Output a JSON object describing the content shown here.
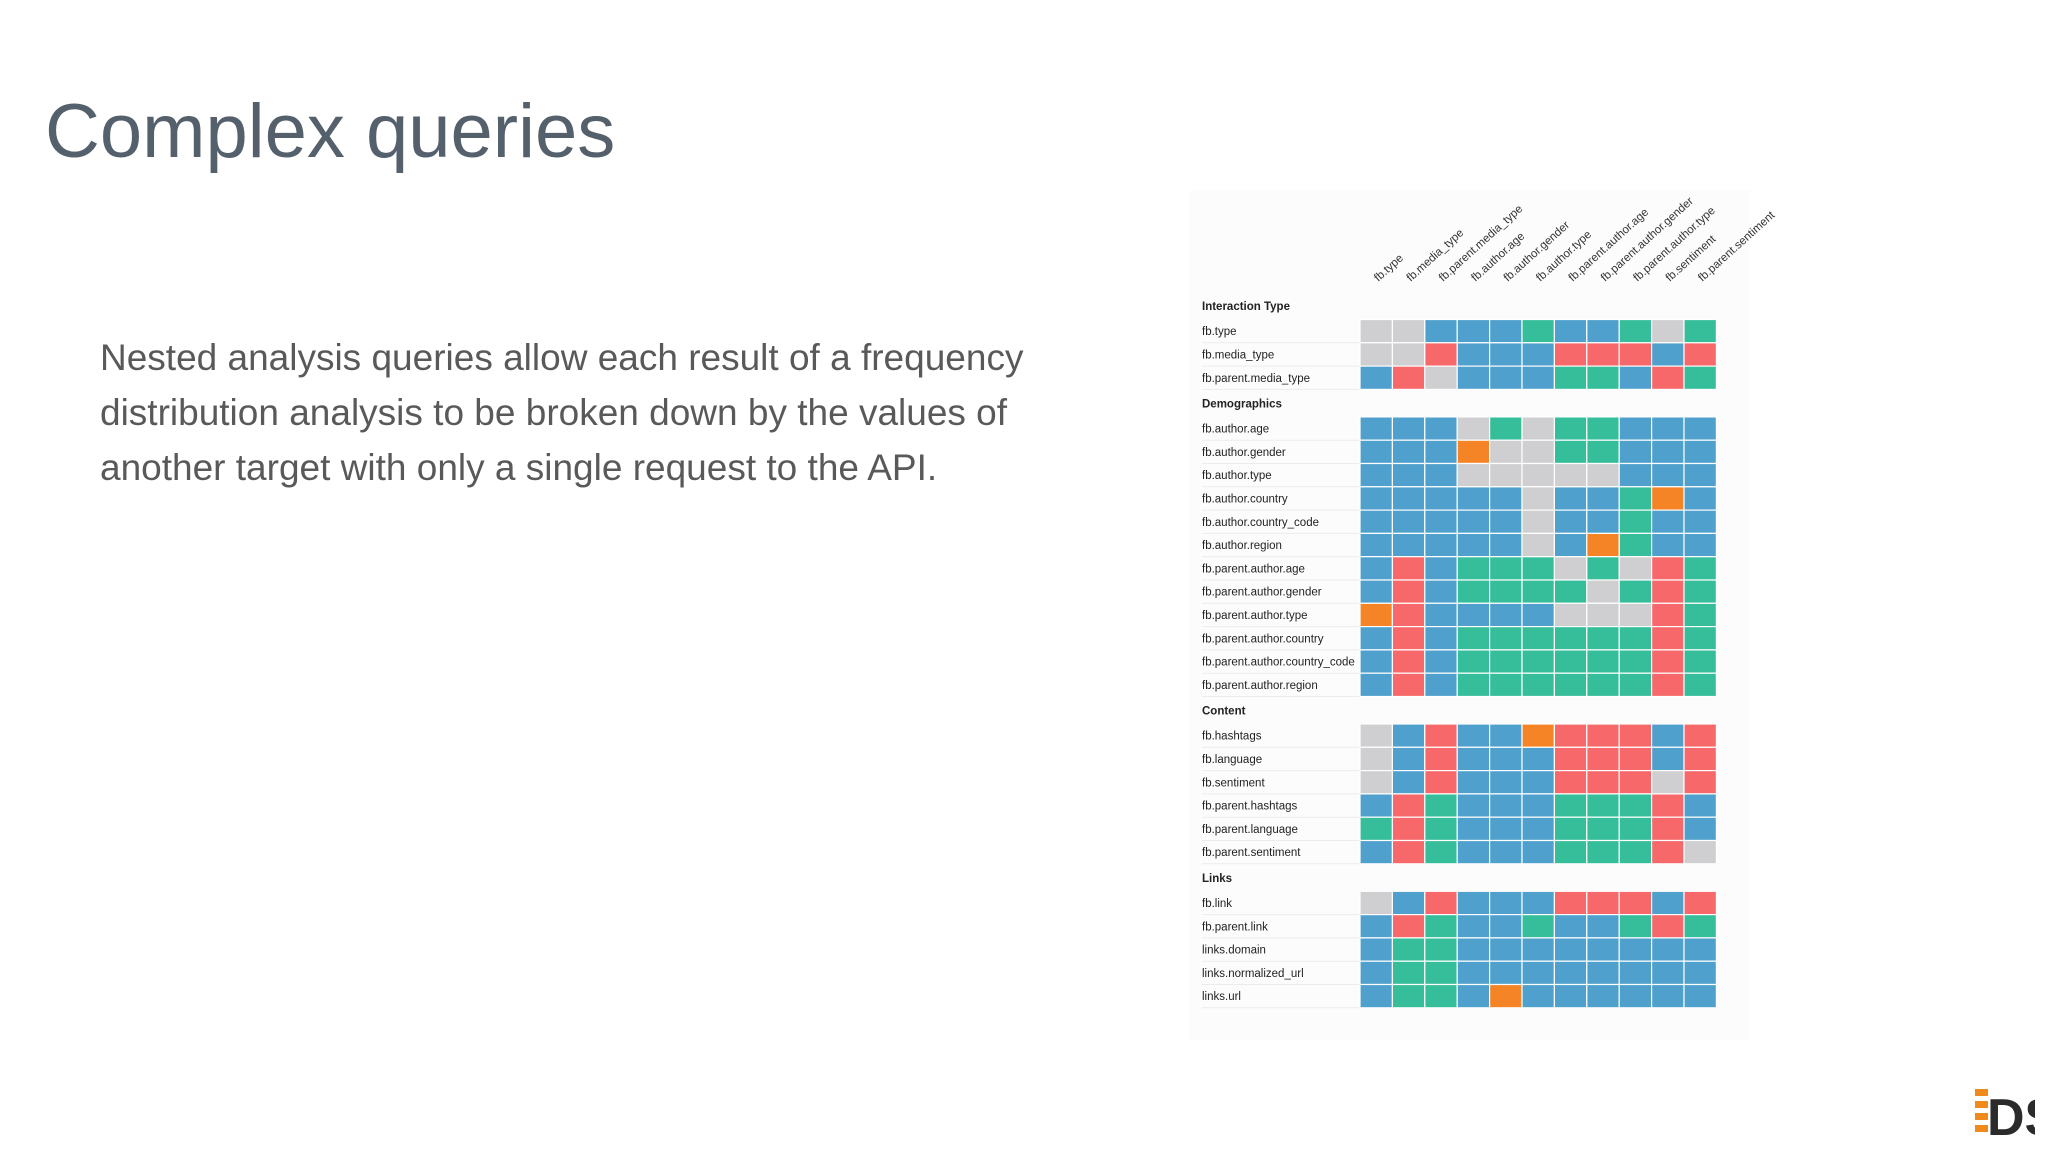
{
  "slide": {
    "title": "Complex queries",
    "body": "Nested analysis queries allow each result of a frequency distribution analysis to be broken down by the values of another target with only a single request to the API."
  },
  "logo": {
    "text": "DS",
    "colors": {
      "bars": "#f08a1c",
      "letters": "#2b2b2b"
    }
  },
  "chart_data": {
    "type": "heatmap",
    "columns": [
      "fb.type",
      "fb.media_type",
      "fb.parent.media_type",
      "fb.author.age",
      "fb.author.gender",
      "fb.author.type",
      "fb.parent.author.age",
      "fb.parent.author.gender",
      "fb.parent.author.type",
      "fb.sentiment",
      "fb.parent.sentiment"
    ],
    "palette": {
      "G": "#cfcfd1",
      "B": "#4fa0cc",
      "T": "#36bd9a",
      "R": "#f7686a",
      "O": "#f58426"
    },
    "groups": [
      {
        "name": "Interaction Type",
        "rows": [
          {
            "label": "fb.type",
            "cells": [
              "G",
              "G",
              "B",
              "B",
              "B",
              "T",
              "B",
              "B",
              "T",
              "G",
              "T"
            ]
          },
          {
            "label": "fb.media_type",
            "cells": [
              "G",
              "G",
              "R",
              "B",
              "B",
              "B",
              "R",
              "R",
              "R",
              "B",
              "R"
            ]
          },
          {
            "label": "fb.parent.media_type",
            "cells": [
              "B",
              "R",
              "G",
              "B",
              "B",
              "B",
              "T",
              "T",
              "B",
              "R",
              "T"
            ]
          }
        ]
      },
      {
        "name": "Demographics",
        "rows": [
          {
            "label": "fb.author.age",
            "cells": [
              "B",
              "B",
              "B",
              "G",
              "T",
              "G",
              "T",
              "T",
              "B",
              "B",
              "B"
            ]
          },
          {
            "label": "fb.author.gender",
            "cells": [
              "B",
              "B",
              "B",
              "O",
              "G",
              "G",
              "T",
              "T",
              "B",
              "B",
              "B"
            ]
          },
          {
            "label": "fb.author.type",
            "cells": [
              "B",
              "B",
              "B",
              "G",
              "G",
              "G",
              "G",
              "G",
              "B",
              "B",
              "B"
            ]
          },
          {
            "label": "fb.author.country",
            "cells": [
              "B",
              "B",
              "B",
              "B",
              "B",
              "G",
              "B",
              "B",
              "T",
              "O",
              "B"
            ]
          },
          {
            "label": "fb.author.country_code",
            "cells": [
              "B",
              "B",
              "B",
              "B",
              "B",
              "G",
              "B",
              "B",
              "T",
              "B",
              "B"
            ]
          },
          {
            "label": "fb.author.region",
            "cells": [
              "B",
              "B",
              "B",
              "B",
              "B",
              "G",
              "B",
              "O",
              "T",
              "B",
              "B"
            ]
          },
          {
            "label": "fb.parent.author.age",
            "cells": [
              "B",
              "R",
              "B",
              "T",
              "T",
              "T",
              "G",
              "T",
              "G",
              "R",
              "T"
            ]
          },
          {
            "label": "fb.parent.author.gender",
            "cells": [
              "B",
              "R",
              "B",
              "T",
              "T",
              "T",
              "T",
              "G",
              "T",
              "R",
              "T"
            ]
          },
          {
            "label": "fb.parent.author.type",
            "cells": [
              "O",
              "R",
              "B",
              "B",
              "B",
              "B",
              "G",
              "G",
              "G",
              "R",
              "T"
            ]
          },
          {
            "label": "fb.parent.author.country",
            "cells": [
              "B",
              "R",
              "B",
              "T",
              "T",
              "T",
              "T",
              "T",
              "T",
              "R",
              "T"
            ]
          },
          {
            "label": "fb.parent.author.country_code",
            "cells": [
              "B",
              "R",
              "B",
              "T",
              "T",
              "T",
              "T",
              "T",
              "T",
              "R",
              "T"
            ]
          },
          {
            "label": "fb.parent.author.region",
            "cells": [
              "B",
              "R",
              "B",
              "T",
              "T",
              "T",
              "T",
              "T",
              "T",
              "R",
              "T"
            ]
          }
        ]
      },
      {
        "name": "Content",
        "rows": [
          {
            "label": "fb.hashtags",
            "cells": [
              "G",
              "B",
              "R",
              "B",
              "B",
              "O",
              "R",
              "R",
              "R",
              "B",
              "R"
            ]
          },
          {
            "label": "fb.language",
            "cells": [
              "G",
              "B",
              "R",
              "B",
              "B",
              "B",
              "R",
              "R",
              "R",
              "B",
              "R"
            ]
          },
          {
            "label": "fb.sentiment",
            "cells": [
              "G",
              "B",
              "R",
              "B",
              "B",
              "B",
              "R",
              "R",
              "R",
              "G",
              "R"
            ]
          },
          {
            "label": "fb.parent.hashtags",
            "cells": [
              "B",
              "R",
              "T",
              "B",
              "B",
              "B",
              "T",
              "T",
              "T",
              "R",
              "B"
            ]
          },
          {
            "label": "fb.parent.language",
            "cells": [
              "T",
              "R",
              "T",
              "B",
              "B",
              "B",
              "T",
              "T",
              "T",
              "R",
              "B"
            ]
          },
          {
            "label": "fb.parent.sentiment",
            "cells": [
              "B",
              "R",
              "T",
              "B",
              "B",
              "B",
              "T",
              "T",
              "T",
              "R",
              "G"
            ]
          }
        ]
      },
      {
        "name": "Links",
        "rows": [
          {
            "label": "fb.link",
            "cells": [
              "G",
              "B",
              "R",
              "B",
              "B",
              "B",
              "R",
              "R",
              "R",
              "B",
              "R"
            ]
          },
          {
            "label": "fb.parent.link",
            "cells": [
              "B",
              "R",
              "T",
              "B",
              "B",
              "T",
              "B",
              "B",
              "T",
              "R",
              "T"
            ]
          },
          {
            "label": "links.domain",
            "cells": [
              "B",
              "T",
              "T",
              "B",
              "B",
              "B",
              "B",
              "B",
              "B",
              "B",
              "B"
            ]
          },
          {
            "label": "links.normalized_url",
            "cells": [
              "B",
              "T",
              "T",
              "B",
              "B",
              "B",
              "B",
              "B",
              "B",
              "B",
              "B"
            ]
          },
          {
            "label": "links.url",
            "cells": [
              "B",
              "T",
              "T",
              "B",
              "O",
              "B",
              "B",
              "B",
              "B",
              "B",
              "B"
            ]
          }
        ]
      }
    ]
  }
}
